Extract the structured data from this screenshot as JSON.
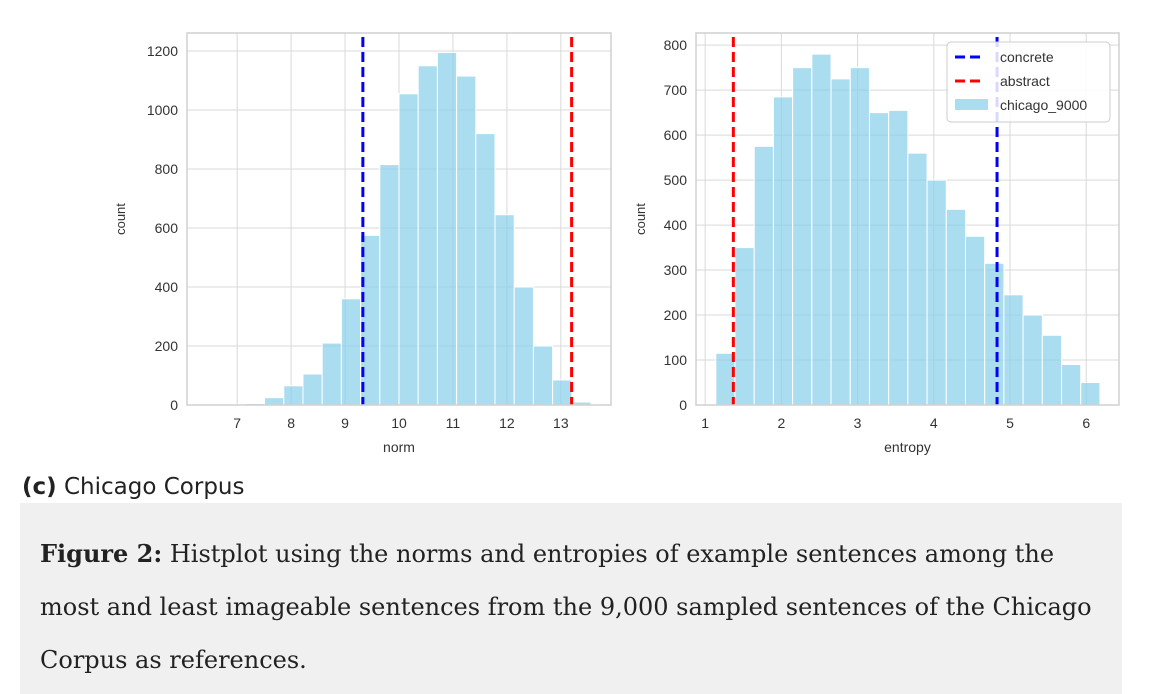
{
  "chart_data": [
    {
      "type": "histogram",
      "xlabel": "norm",
      "ylabel": "count",
      "xlim": [
        6.07,
        13.93
      ],
      "ylim": [
        0,
        1261
      ],
      "xticks": [
        7,
        8,
        9,
        10,
        11,
        12,
        13
      ],
      "yticks": [
        0,
        200,
        400,
        600,
        800,
        1000,
        1200
      ],
      "bin_start": 6.44,
      "bin_width": 0.356,
      "values": [
        2,
        0,
        5,
        25,
        65,
        105,
        210,
        360,
        575,
        815,
        1055,
        1150,
        1195,
        1115,
        920,
        645,
        400,
        200,
        85,
        10
      ],
      "vlines": [
        {
          "name": "concrete",
          "x": 9.33,
          "color": "#0000ff"
        },
        {
          "name": "abstract",
          "x": 13.2,
          "color": "#ff0000"
        }
      ],
      "bar_color": "#87ceeb"
    },
    {
      "type": "histogram",
      "xlabel": "entropy",
      "ylabel": "count",
      "xlim": [
        0.88,
        6.43
      ],
      "ylim": [
        0,
        827
      ],
      "xticks": [
        1,
        2,
        3,
        4,
        5,
        6
      ],
      "yticks": [
        0,
        100,
        200,
        300,
        400,
        500,
        600,
        700,
        800
      ],
      "bin_start": 1.14,
      "bin_width": 0.252,
      "values": [
        115,
        350,
        575,
        685,
        750,
        780,
        725,
        750,
        650,
        655,
        560,
        500,
        435,
        375,
        315,
        245,
        200,
        155,
        90,
        50
      ],
      "vlines": [
        {
          "name": "concrete",
          "x": 4.83,
          "color": "#0000ff"
        },
        {
          "name": "abstract",
          "x": 1.37,
          "color": "#ff0000"
        }
      ],
      "bar_color": "#87ceeb",
      "legend": {
        "placement": "top-right",
        "entries": [
          "concrete",
          "abstract",
          "chicago_9000"
        ]
      }
    }
  ],
  "subcaption": {
    "label": "(c)",
    "text": " Chicago Corpus"
  },
  "caption": {
    "label": "Figure 2:",
    "text": " Histplot using the norms and entropies of example sentences among the most and least imageable sentences from the 9,000 sampled sentences of the Chicago Corpus as references."
  }
}
